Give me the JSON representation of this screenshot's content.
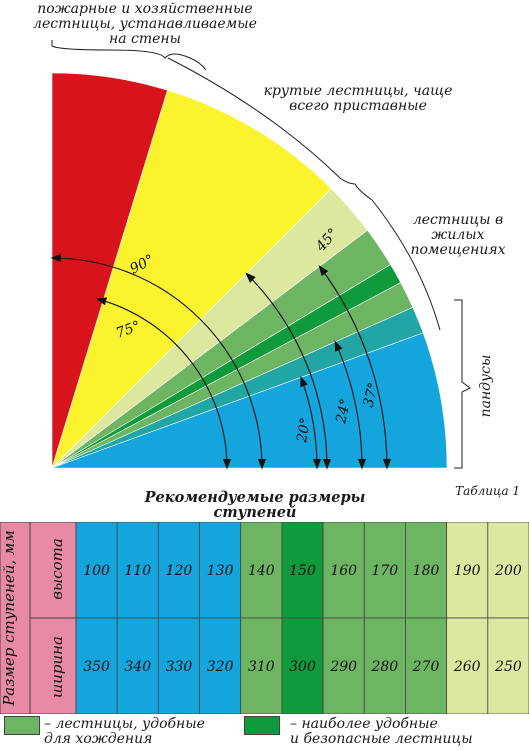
{
  "labels": {
    "fire_ladders": [
      "пожарные и хозяйственные",
      "лестницы, устанавливаемые",
      "на стены"
    ],
    "steep_stairs": [
      "крутые лестницы, чаще",
      "всего приставные"
    ],
    "residential_stairs": [
      "лестницы в",
      "жилых",
      "помещениях"
    ],
    "ramps": "пандусы"
  },
  "angles": [
    "90°",
    "75°",
    "45°",
    "37°",
    "24°",
    "20°"
  ],
  "table": {
    "title": "Рекомендуемые размеры ступеней",
    "label": "Таблица 1",
    "row_group": "Размер ступеней, мм",
    "row_labels": [
      "высота",
      "ширина"
    ],
    "heights": [
      "100",
      "110",
      "120",
      "130",
      "140",
      "150",
      "160",
      "170",
      "180",
      "190",
      "200"
    ],
    "widths": [
      "350",
      "340",
      "330",
      "320",
      "310",
      "300",
      "290",
      "280",
      "270",
      "260",
      "250"
    ]
  },
  "legend": {
    "comfortable": [
      "– лестницы, удобные",
      "для хождения"
    ],
    "best": [
      "– наиболее удобные",
      "и безопасные лестницы"
    ]
  },
  "colors": {
    "red": "#d7141b",
    "yellow": "#fbf32e",
    "lightyellow": "#dde79f",
    "green": "#6db463",
    "darkgreen": "#0f9a3b",
    "teal": "#21a6a5",
    "blue": "#13a5dc",
    "rowlabel": "#e98aa4"
  }
}
